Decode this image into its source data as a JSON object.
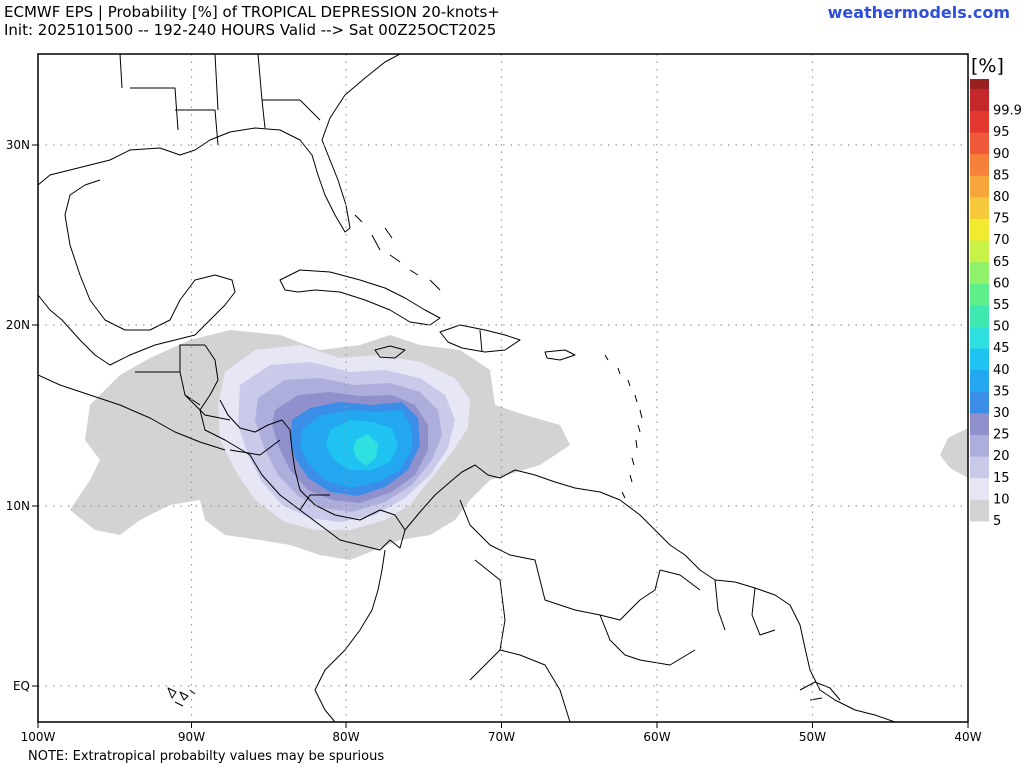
{
  "header": {
    "title_line1": "ECMWF EPS | Probability [%] of TROPICAL DEPRESSION 20-knots+",
    "title_line2": "Init: 2025101500 -- 192-240 HOURS Valid --> Sat 00Z25OCT2025",
    "brand": "weathermodels.com"
  },
  "map": {
    "lon_labels": [
      "100W",
      "90W",
      "80W",
      "70W",
      "60W",
      "50W",
      "40W"
    ],
    "lat_labels": [
      "30N",
      "20N",
      "10N",
      "EQ"
    ],
    "land_fill": "#ffffff",
    "grid": "dotted"
  },
  "colorbar": {
    "unit_label": "[%]",
    "levels": [
      {
        "label": "5",
        "color": "#d3d3d3"
      },
      {
        "label": "10",
        "color": "#e6e6f5"
      },
      {
        "label": "15",
        "color": "#c9c9ea"
      },
      {
        "label": "20",
        "color": "#aeaedd"
      },
      {
        "label": "25",
        "color": "#9090cc"
      },
      {
        "label": "30",
        "color": "#3a8ee8"
      },
      {
        "label": "35",
        "color": "#22a7f0"
      },
      {
        "label": "40",
        "color": "#1fc3f2"
      },
      {
        "label": "45",
        "color": "#2ee0e0"
      },
      {
        "label": "50",
        "color": "#3ee8b0"
      },
      {
        "label": "55",
        "color": "#5fef8a"
      },
      {
        "label": "60",
        "color": "#8ff26a"
      },
      {
        "label": "65",
        "color": "#c8f248"
      },
      {
        "label": "70",
        "color": "#f2ea2e"
      },
      {
        "label": "75",
        "color": "#f6c93a"
      },
      {
        "label": "80",
        "color": "#f6a53a"
      },
      {
        "label": "85",
        "color": "#f6823a"
      },
      {
        "label": "90",
        "color": "#f2583a"
      },
      {
        "label": "95",
        "color": "#e2382e"
      },
      {
        "label": "99.9",
        "color": "#c4282a"
      }
    ],
    "top_color": "#9a2020"
  },
  "footer": {
    "note": "NOTE: Extratropical probabilty values may be spurious"
  }
}
